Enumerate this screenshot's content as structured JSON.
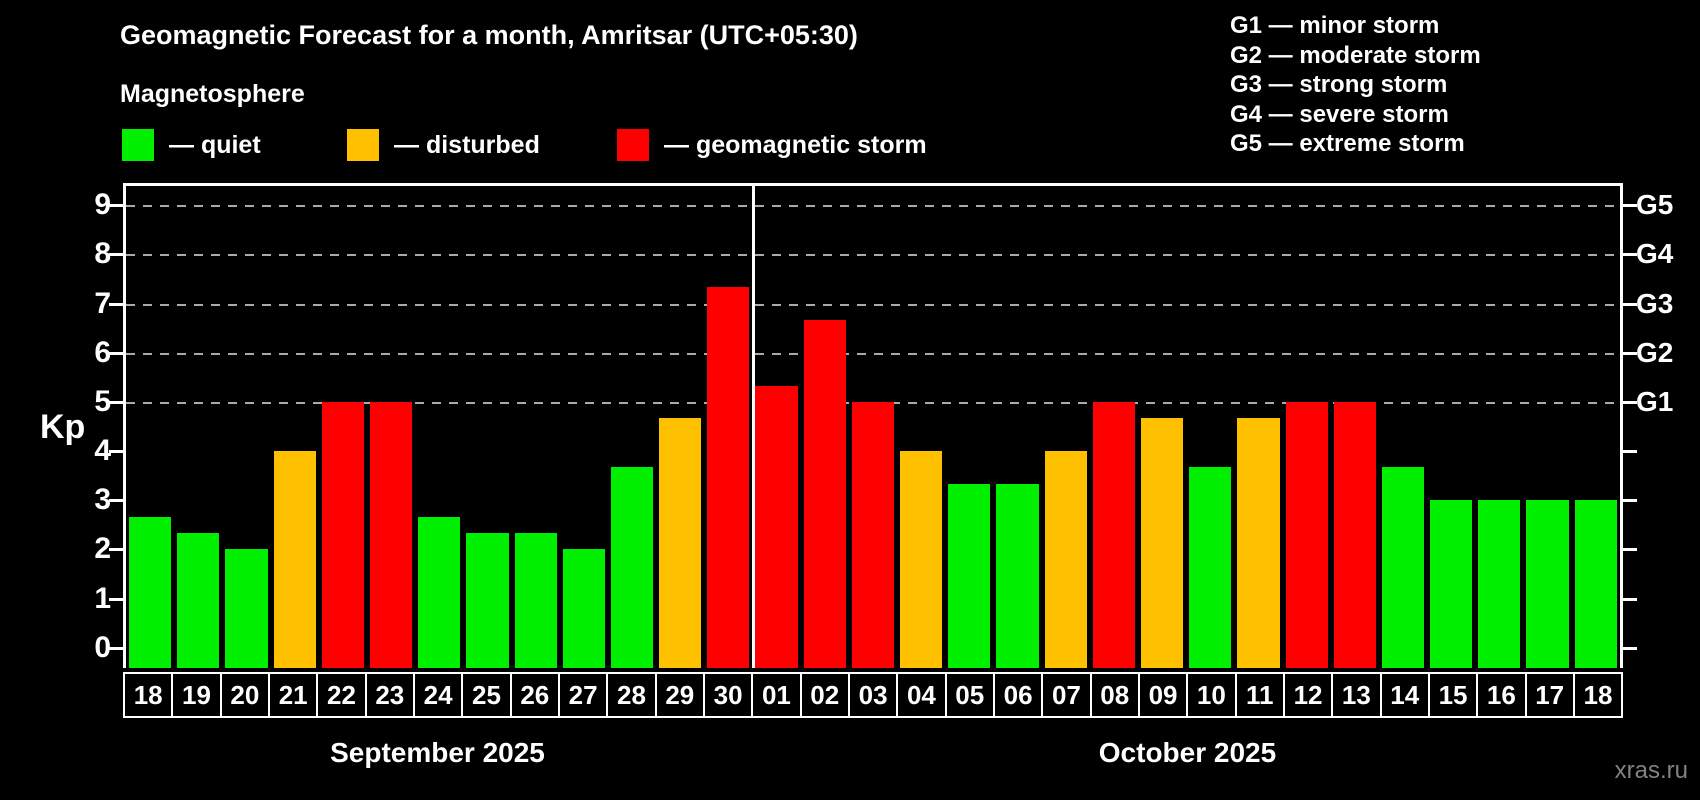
{
  "title": "Geomagnetic Forecast for a month, Amritsar (UTC+05:30)",
  "subtitle": "Magnetosphere",
  "legend": {
    "items": [
      {
        "key": "quiet",
        "label": "— quiet"
      },
      {
        "key": "disturbed",
        "label": "— disturbed"
      },
      {
        "key": "storm",
        "label": "— geomagnetic storm"
      }
    ]
  },
  "g_legend": [
    "G1 — minor storm",
    "G2 — moderate storm",
    "G3 — strong storm",
    "G4 — severe storm",
    "G5 — extreme storm"
  ],
  "watermark": "xras.ru",
  "colors": {
    "background": "#000000",
    "quiet": "#00f000",
    "disturbed": "#ffc000",
    "storm": "#ff0000",
    "axis": "#ffffff",
    "grid": "#aaaaaa",
    "watermark": "#828282"
  },
  "chart_data": {
    "type": "bar",
    "ylabel": "Kp",
    "ylim": [
      0,
      9
    ],
    "yticks": [
      0,
      1,
      2,
      3,
      4,
      5,
      6,
      7,
      8,
      9
    ],
    "gridlines_at": [
      5,
      6,
      7,
      8,
      9
    ],
    "grid_style": "dashed",
    "legend_position": "top",
    "right_axis": [
      {
        "kp": 9,
        "label": "G5"
      },
      {
        "kp": 8,
        "label": "G4"
      },
      {
        "kp": 7,
        "label": "G3"
      },
      {
        "kp": 6,
        "label": "G2"
      },
      {
        "kp": 5,
        "label": "G1"
      }
    ],
    "months": [
      {
        "label": "September 2025",
        "days": 13
      },
      {
        "label": "October 2025",
        "days": 18
      }
    ],
    "bars": [
      {
        "day": "18",
        "value": 2.67,
        "status": "quiet"
      },
      {
        "day": "19",
        "value": 2.33,
        "status": "quiet"
      },
      {
        "day": "20",
        "value": 2.0,
        "status": "quiet"
      },
      {
        "day": "21",
        "value": 4.0,
        "status": "disturbed"
      },
      {
        "day": "22",
        "value": 5.0,
        "status": "storm"
      },
      {
        "day": "23",
        "value": 5.0,
        "status": "storm"
      },
      {
        "day": "24",
        "value": 2.67,
        "status": "quiet"
      },
      {
        "day": "25",
        "value": 2.33,
        "status": "quiet"
      },
      {
        "day": "26",
        "value": 2.33,
        "status": "quiet"
      },
      {
        "day": "27",
        "value": 2.0,
        "status": "quiet"
      },
      {
        "day": "28",
        "value": 3.67,
        "status": "quiet"
      },
      {
        "day": "29",
        "value": 4.67,
        "status": "disturbed"
      },
      {
        "day": "30",
        "value": 7.33,
        "status": "storm"
      },
      {
        "day": "01",
        "value": 5.33,
        "status": "storm"
      },
      {
        "day": "02",
        "value": 6.67,
        "status": "storm"
      },
      {
        "day": "03",
        "value": 5.0,
        "status": "storm"
      },
      {
        "day": "04",
        "value": 4.0,
        "status": "disturbed"
      },
      {
        "day": "05",
        "value": 3.33,
        "status": "quiet"
      },
      {
        "day": "06",
        "value": 3.33,
        "status": "quiet"
      },
      {
        "day": "07",
        "value": 4.0,
        "status": "disturbed"
      },
      {
        "day": "08",
        "value": 5.0,
        "status": "storm"
      },
      {
        "day": "09",
        "value": 4.67,
        "status": "disturbed"
      },
      {
        "day": "10",
        "value": 3.67,
        "status": "quiet"
      },
      {
        "day": "11",
        "value": 4.67,
        "status": "disturbed"
      },
      {
        "day": "12",
        "value": 5.0,
        "status": "storm"
      },
      {
        "day": "13",
        "value": 5.0,
        "status": "storm"
      },
      {
        "day": "14",
        "value": 3.67,
        "status": "quiet"
      },
      {
        "day": "15",
        "value": 3.0,
        "status": "quiet"
      },
      {
        "day": "16",
        "value": 3.0,
        "status": "quiet"
      },
      {
        "day": "17",
        "value": 3.0,
        "status": "quiet"
      },
      {
        "day": "18",
        "value": 3.0,
        "status": "quiet"
      }
    ]
  }
}
